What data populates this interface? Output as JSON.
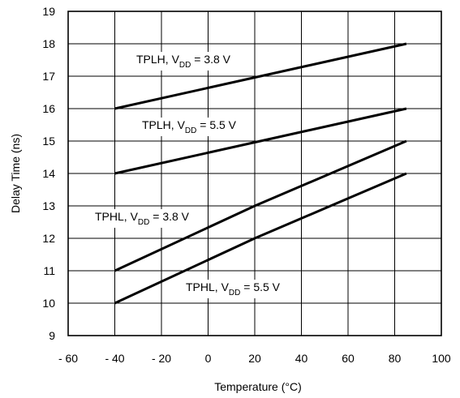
{
  "chart_data": {
    "type": "line",
    "xlabel": "Temperature (°C)",
    "ylabel": "Delay Time (ns)",
    "xlim": [
      -60,
      100
    ],
    "ylim": [
      9,
      19
    ],
    "xticks": [
      -60,
      -40,
      -20,
      0,
      20,
      40,
      60,
      80,
      100
    ],
    "xtick_labels": [
      "- 60",
      "- 40",
      "- 20",
      "0",
      "20",
      "40",
      "60",
      "80",
      "100"
    ],
    "yticks": [
      9,
      10,
      11,
      12,
      13,
      14,
      15,
      16,
      17,
      18,
      19
    ],
    "grid": true,
    "series": [
      {
        "label_prefix": "TPLH, V",
        "label_sub": "DD",
        "label_suffix": " = 3.8 V",
        "points": [
          [
            -40,
            16
          ],
          [
            85,
            18
          ]
        ]
      },
      {
        "label_prefix": "TPLH, V",
        "label_sub": "DD",
        "label_suffix": " = 5.5 V",
        "points": [
          [
            -40,
            14
          ],
          [
            85,
            16
          ]
        ]
      },
      {
        "label_prefix": "TPHL, V",
        "label_sub": "DD",
        "label_suffix": " = 3.8 V",
        "points": [
          [
            -40,
            11
          ],
          [
            20,
            13
          ],
          [
            85,
            15
          ]
        ]
      },
      {
        "label_prefix": "TPHL, V",
        "label_sub": "DD",
        "label_suffix": " = 5.5 V",
        "points": [
          [
            -40,
            10
          ],
          [
            20,
            12
          ],
          [
            85,
            14
          ]
        ]
      }
    ]
  }
}
